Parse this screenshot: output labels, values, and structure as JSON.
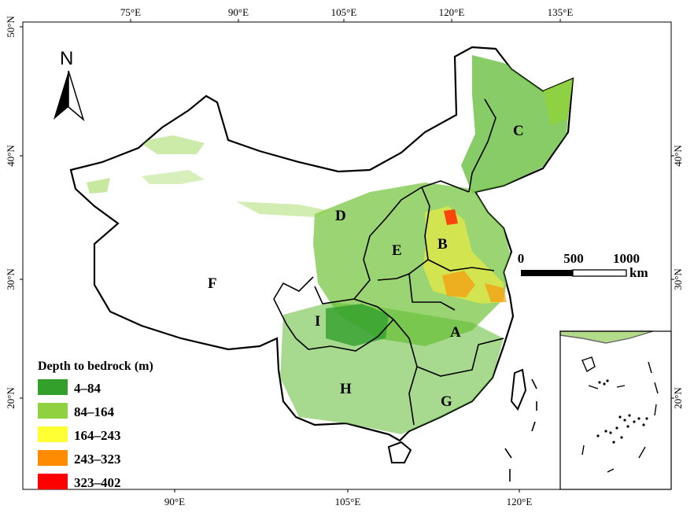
{
  "map": {
    "top_ticks": [
      "75°E",
      "90°E",
      "105°E",
      "120°E",
      "135°E"
    ],
    "bottom_ticks": [
      "90°E",
      "105°E",
      "120°E"
    ],
    "left_ticks": [
      "50°N",
      "40°N",
      "30°N",
      "20°N"
    ],
    "right_ticks": [
      "40°N",
      "30°N",
      "20°N"
    ],
    "north_label": "N",
    "regions": [
      "A",
      "B",
      "C",
      "D",
      "E",
      "F",
      "G",
      "H",
      "I"
    ],
    "scale_bar": {
      "ticks": [
        "0",
        "500",
        "1000"
      ],
      "unit": "km"
    },
    "legend": {
      "title": "Depth to bedrock (m)",
      "items": [
        {
          "label": "4–84",
          "color": "#33a02c"
        },
        {
          "label": "84–164",
          "color": "#8fd13f"
        },
        {
          "label": "164–243",
          "color": "#ffff33"
        },
        {
          "label": "243–323",
          "color": "#ff8c00"
        },
        {
          "label": "323–402",
          "color": "#ff0000"
        }
      ]
    }
  }
}
